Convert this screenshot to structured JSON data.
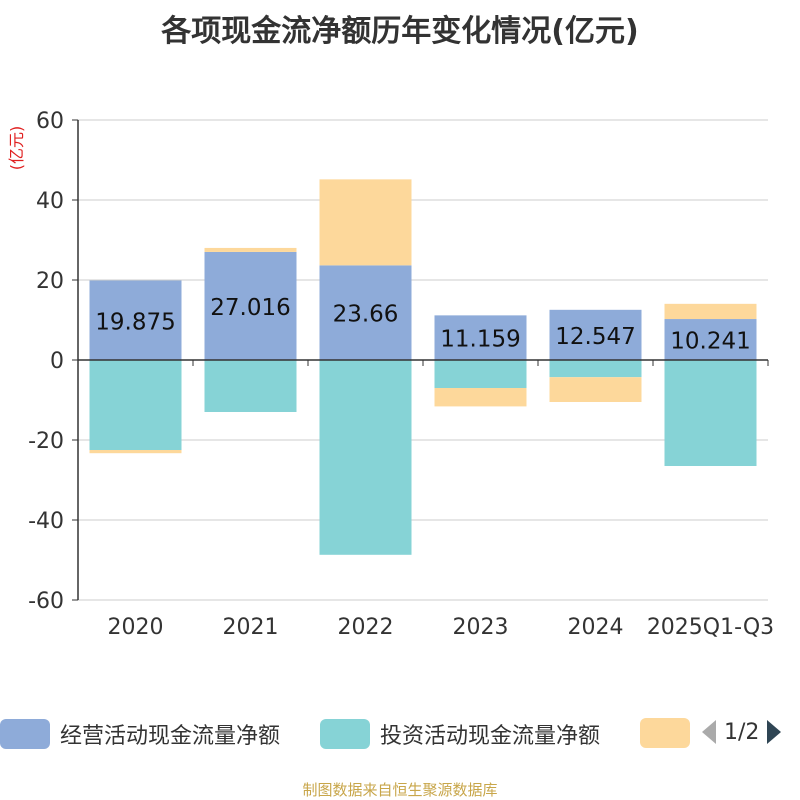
{
  "chart_data": {
    "type": "bar",
    "stacked": true,
    "title": "各项现金流净额历年变化情况(亿元)",
    "ylabel": "(亿元)",
    "xlabel": "",
    "ylim": [
      -60,
      60
    ],
    "yticks": [
      60,
      40,
      20,
      0,
      -20,
      -40,
      -60
    ],
    "grid": true,
    "categories": [
      "2020",
      "2021",
      "2022",
      "2023",
      "2024",
      "2025Q1-Q3"
    ],
    "series": [
      {
        "name": "经营活动现金流量净额",
        "color": "#8eabd9",
        "values": [
          19.875,
          27.016,
          23.66,
          11.159,
          12.547,
          10.241
        ],
        "show_labels": true
      },
      {
        "name": "投资活动现金流量净额",
        "color": "#86d3d6",
        "values": [
          -22.5,
          -13.0,
          -48.7,
          -7.0,
          -4.3,
          -26.5
        ],
        "show_labels": false
      },
      {
        "name": "",
        "color": "#fdd89b",
        "values": [
          -0.8,
          1.0,
          21.5,
          -4.6,
          -6.2,
          3.8
        ],
        "show_labels": false
      }
    ],
    "legend_position": "bottom"
  },
  "legend": {
    "items": [
      {
        "label": "经营活动现金流量净额",
        "color": "#8eabd9"
      },
      {
        "label": "投资活动现金流量净额",
        "color": "#86d3d6"
      },
      {
        "label": "",
        "color": "#fdd89b"
      }
    ],
    "pager_text": "1/2"
  },
  "source": "制图数据来自恒生聚源数据库"
}
